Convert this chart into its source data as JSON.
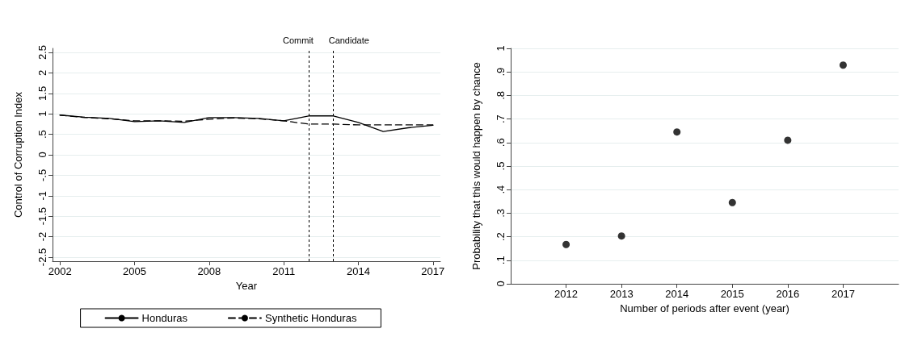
{
  "chart_data": [
    {
      "type": "line",
      "xlabel": "Year",
      "ylabel": "Control of Corruption Index",
      "x": [
        2002,
        2003,
        2004,
        2005,
        2006,
        2007,
        2008,
        2009,
        2010,
        2011,
        2012,
        2013,
        2014,
        2015,
        2016,
        2017
      ],
      "series": [
        {
          "name": "Honduras",
          "color": "#000000",
          "line_style": "solid",
          "values": [
            0.97,
            0.92,
            0.89,
            0.81,
            0.83,
            0.79,
            0.91,
            0.91,
            0.89,
            0.83,
            0.95,
            0.95,
            0.79,
            0.57,
            0.66,
            0.72
          ]
        },
        {
          "name": "Synthetic Honduras",
          "color": "#000000",
          "line_style": "dashed",
          "values": [
            0.97,
            0.91,
            0.88,
            0.83,
            0.83,
            0.82,
            0.87,
            0.9,
            0.88,
            0.83,
            0.75,
            0.75,
            0.73,
            0.73,
            0.73,
            0.73
          ]
        }
      ],
      "xlim": [
        2001.7,
        2017.3
      ],
      "xticks": [
        2002,
        2005,
        2008,
        2011,
        2014,
        2017
      ],
      "ylim": [
        -2.6,
        2.6
      ],
      "yticks": [
        {
          "value": -2.5,
          "label": "-2.5"
        },
        {
          "value": -2,
          "label": "-2"
        },
        {
          "value": -1.5,
          "label": "-1.5"
        },
        {
          "value": -1,
          "label": "-1"
        },
        {
          "value": -0.5,
          "label": "-.5"
        },
        {
          "value": 0,
          "label": "0"
        },
        {
          "value": 0.5,
          "label": ".5"
        },
        {
          "value": 1,
          "label": "1"
        },
        {
          "value": 1.5,
          "label": "1.5"
        },
        {
          "value": 2,
          "label": "2"
        },
        {
          "value": 2.5,
          "label": "2.5"
        }
      ],
      "ref_lines": [
        {
          "axis": "x",
          "value": 2012,
          "label": "Commit",
          "line_style": "dotted",
          "color": "#000000"
        },
        {
          "axis": "x",
          "value": 2013,
          "label": "Candidate",
          "line_style": "dotted",
          "color": "#000000"
        }
      ],
      "grid": "y",
      "legend": "bottom",
      "marker": "none"
    },
    {
      "type": "scatter",
      "xlabel": "Number of periods after event (year)",
      "ylabel": "Probability that this would happen by chance",
      "x": [
        2012,
        2013,
        2014,
        2015,
        2016,
        2017
      ],
      "series": [
        {
          "color": "#000000",
          "values": [
            0.167,
            0.203,
            0.645,
            0.345,
            0.61,
            0.929
          ]
        }
      ],
      "xlim": [
        2011,
        2018
      ],
      "xticks": [
        2012,
        2013,
        2014,
        2015,
        2016,
        2017
      ],
      "ylim": [
        0,
        1
      ],
      "yticks": [
        0,
        {
          "value": 0.1,
          "label": ".1"
        },
        {
          "value": 0.2,
          "label": ".2"
        },
        {
          "value": 0.3,
          "label": ".3"
        },
        {
          "value": 0.4,
          "label": ".4"
        },
        {
          "value": 0.5,
          "label": ".5"
        },
        {
          "value": 0.6,
          "label": ".6"
        },
        {
          "value": 0.7,
          "label": ".7"
        },
        {
          "value": 0.8,
          "label": ".8"
        },
        {
          "value": 0.9,
          "label": ".9"
        },
        1
      ],
      "grid": "y",
      "legend": false,
      "marker": "circle"
    }
  ]
}
